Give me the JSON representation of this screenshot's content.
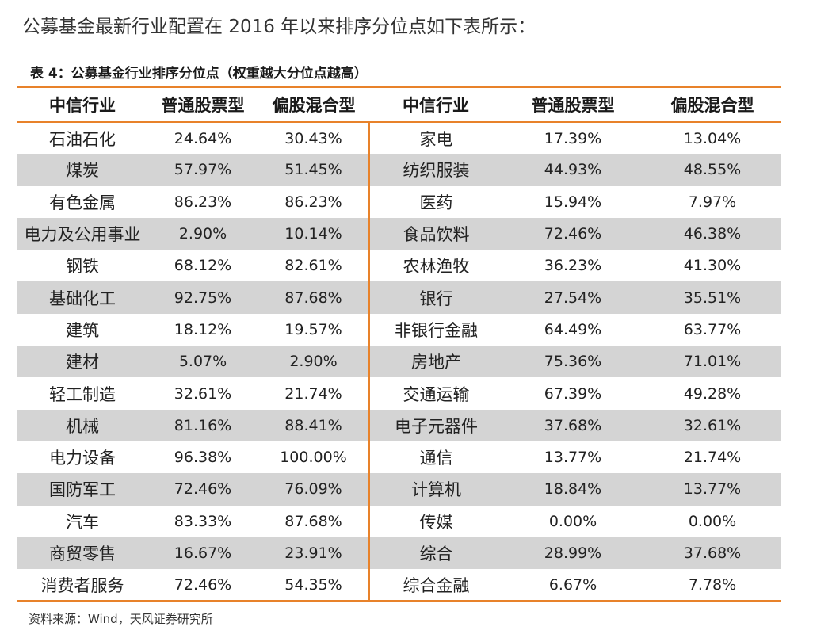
{
  "intro_text": "公募基金最新行业配置在 2016 年以来排序分位点如下表所示：",
  "caption": "表 4：公募基金行业排序分位点（权重越大分位点越高）",
  "table": {
    "headers": [
      "中信行业",
      "普通股票型",
      "偏股混合型",
      "中信行业",
      "普通股票型",
      "偏股混合型"
    ],
    "rows": [
      [
        "石油石化",
        "24.64%",
        "30.43%",
        "家电",
        "17.39%",
        "13.04%"
      ],
      [
        "煤炭",
        "57.97%",
        "51.45%",
        "纺织服装",
        "44.93%",
        "48.55%"
      ],
      [
        "有色金属",
        "86.23%",
        "86.23%",
        "医药",
        "15.94%",
        "7.97%"
      ],
      [
        "电力及公用事业",
        "2.90%",
        "10.14%",
        "食品饮料",
        "72.46%",
        "46.38%"
      ],
      [
        "钢铁",
        "68.12%",
        "82.61%",
        "农林渔牧",
        "36.23%",
        "41.30%"
      ],
      [
        "基础化工",
        "92.75%",
        "87.68%",
        "银行",
        "27.54%",
        "35.51%"
      ],
      [
        "建筑",
        "18.12%",
        "19.57%",
        "非银行金融",
        "64.49%",
        "63.77%"
      ],
      [
        "建材",
        "5.07%",
        "2.90%",
        "房地产",
        "75.36%",
        "71.01%"
      ],
      [
        "轻工制造",
        "32.61%",
        "21.74%",
        "交通运输",
        "67.39%",
        "49.28%"
      ],
      [
        "机械",
        "81.16%",
        "88.41%",
        "电子元器件",
        "37.68%",
        "32.61%"
      ],
      [
        "电力设备",
        "96.38%",
        "100.00%",
        "通信",
        "13.77%",
        "21.74%"
      ],
      [
        "国防军工",
        "72.46%",
        "76.09%",
        "计算机",
        "18.84%",
        "13.77%"
      ],
      [
        "汽车",
        "83.33%",
        "87.68%",
        "传媒",
        "0.00%",
        "0.00%"
      ],
      [
        "商贸零售",
        "16.67%",
        "23.91%",
        "综合",
        "28.99%",
        "37.68%"
      ],
      [
        "消费者服务",
        "72.46%",
        "54.35%",
        "综合金融",
        "6.67%",
        "7.78%"
      ]
    ]
  },
  "source_text": "资料来源：Wind，天风证券研究所",
  "colors": {
    "accent": "#e8822a",
    "stripe": "#d4d4d4"
  }
}
